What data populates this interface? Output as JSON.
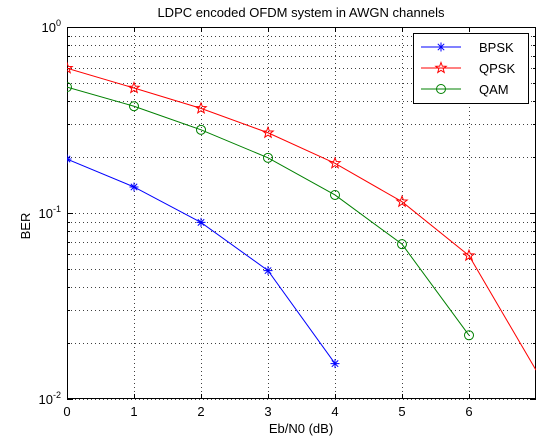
{
  "chart_data": {
    "type": "line",
    "title": "LDPC encoded OFDM system in AWGN channels",
    "xlabel": "Eb/N0 (dB)",
    "ylabel": "BER",
    "y_scale": "log",
    "xlim": [
      0,
      7
    ],
    "ylim": [
      0.01,
      1
    ],
    "x_ticks": [
      0,
      1,
      2,
      3,
      4,
      5,
      6
    ],
    "x_tick_labels": [
      "0",
      "1",
      "2",
      "3",
      "4",
      "5",
      "6"
    ],
    "y_ticks": [
      {
        "value": 1,
        "base": "10",
        "exp": "0"
      },
      {
        "value": 0.1,
        "base": "10",
        "exp": "-1"
      },
      {
        "value": 0.01,
        "base": "10",
        "exp": "-2"
      }
    ],
    "grid": true,
    "legend_position": "top-right",
    "series": [
      {
        "name": "BPSK",
        "color": "#0000ff",
        "marker": "asterisk",
        "x": [
          0,
          1,
          2,
          3,
          4
        ],
        "y": [
          0.195,
          0.138,
          0.089,
          0.049,
          0.0155
        ]
      },
      {
        "name": "QPSK",
        "color": "#ff0000",
        "marker": "star",
        "x": [
          0,
          1,
          2,
          3,
          4,
          5,
          6,
          7
        ],
        "y": [
          0.6,
          0.47,
          0.365,
          0.27,
          0.185,
          0.115,
          0.059,
          0.0143
        ]
      },
      {
        "name": "QAM",
        "color": "#008000",
        "marker": "circle",
        "x": [
          0,
          1,
          2,
          3,
          4,
          5,
          6
        ],
        "y": [
          0.475,
          0.375,
          0.28,
          0.198,
          0.125,
          0.068,
          0.022
        ]
      }
    ]
  }
}
